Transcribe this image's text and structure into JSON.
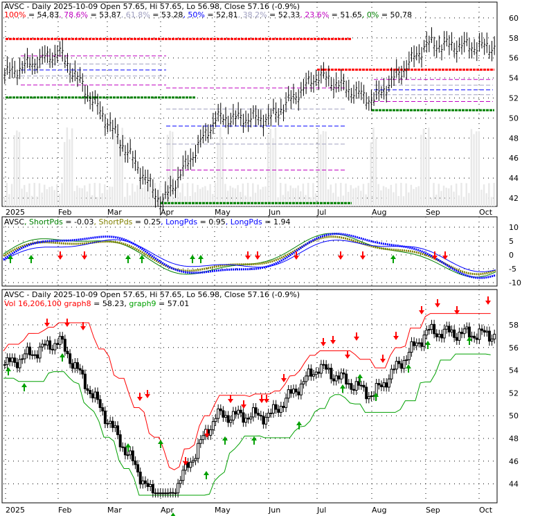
{
  "chart_data": [
    {
      "type": "line",
      "header": {
        "symbol": "AVSC",
        "desc": " - Daily 2025-10-09 Open 57.65, Hi 57.65, Lo 56.98, Close 57.16 (-0.9%)"
      },
      "fib_legend": [
        {
          "label": "100%",
          "value": "54.83",
          "color": "#ff0000"
        },
        {
          "label": "78.6%",
          "value": "53.87",
          "color": "#c000c0"
        },
        {
          "label": "61.8%",
          "value": "53.28",
          "color": "#a0a0c0"
        },
        {
          "label": "50%",
          "value": "52.81",
          "color": "#0000ff"
        },
        {
          "label": "38.2%",
          "value": "52.33",
          "color": "#a0a0c0"
        },
        {
          "label": "23.6%",
          "value": "51.65",
          "color": "#c000c0"
        },
        {
          "label": "0%",
          "value": "50.78",
          "color": "#008000"
        }
      ],
      "fib_levels": [
        {
          "y": 57.9,
          "x0": "Jan",
          "x1": "Jul",
          "color": "#ff0000",
          "width": 3,
          "dash": "4,1"
        },
        {
          "y": 52.05,
          "x0": "Jan",
          "x1": "Apr",
          "color": "#008000",
          "width": 3,
          "dash": "4,1"
        },
        {
          "y": 41.5,
          "x0": "Apr",
          "x1": "Jul",
          "color": "#008000",
          "width": 3,
          "dash": "4,1"
        },
        {
          "y": 54.83,
          "x0": "Jul",
          "x1": "Oct",
          "color": "#ff0000",
          "width": 3,
          "dash": "4,1"
        },
        {
          "y": 50.78,
          "x0": "Aug",
          "x1": "Oct",
          "color": "#008000",
          "width": 3,
          "dash": "4,1"
        }
      ],
      "y_ticks": [
        "42",
        "44",
        "46",
        "48",
        "50",
        "52",
        "54",
        "56",
        "58",
        "60"
      ],
      "x_ticks": [
        "2025",
        "Feb",
        "Mar",
        "Apr",
        "May",
        "Jun",
        "Jul",
        "Aug",
        "Sep",
        "Oct"
      ],
      "prices": {
        "close_keypoints": [
          [
            "Jan",
            54.5
          ],
          [
            "Feb",
            56.6
          ],
          [
            "Mar",
            49.5
          ],
          [
            "Apr",
            41.5
          ],
          [
            "May",
            50.0
          ],
          [
            "Jun",
            50.0
          ],
          [
            "Jul",
            54.3
          ],
          [
            "Aug",
            51.8
          ],
          [
            "Sep",
            57.4
          ],
          [
            "Oct",
            57.16
          ]
        ]
      }
    },
    {
      "type": "line",
      "header": {
        "symbol": "AVSC",
        "items": [
          {
            "label": "ShortPds",
            "value": "-0.03",
            "color": "#008000"
          },
          {
            "label": "ShortPds",
            "value": "0.25",
            "color": "#808000"
          },
          {
            "label": "LongPds",
            "value": "0.95",
            "color": "#0000ff"
          },
          {
            "label": "LongPds",
            "value": "1.94",
            "color": "#0000ff"
          }
        ]
      },
      "y_ticks": [
        "-10",
        "-5",
        "0",
        "5",
        "10"
      ],
      "up_arrows": [
        "Jan",
        "Apr",
        "Jun",
        "Aug"
      ],
      "down_arrows": [
        "Feb",
        "Mar",
        "May",
        "Jul",
        "Sep"
      ]
    },
    {
      "type": "line",
      "header": {
        "symbol": "AVSC",
        "desc": " - Daily 2025-10-09 Open 57.65, Hi 57.65, Lo 56.98, Close 57.16 (-0.9%)",
        "vol": "Vol 16,206,100",
        "graph8": "58.23",
        "graph9": "57.01"
      },
      "y_ticks": [
        "44",
        "46",
        "48",
        "50",
        "52",
        "54",
        "56",
        "58"
      ],
      "x_ticks": [
        "2025",
        "Feb",
        "Mar",
        "Apr",
        "May",
        "Jun",
        "Jul",
        "Aug",
        "Sep",
        "Oct"
      ]
    }
  ]
}
